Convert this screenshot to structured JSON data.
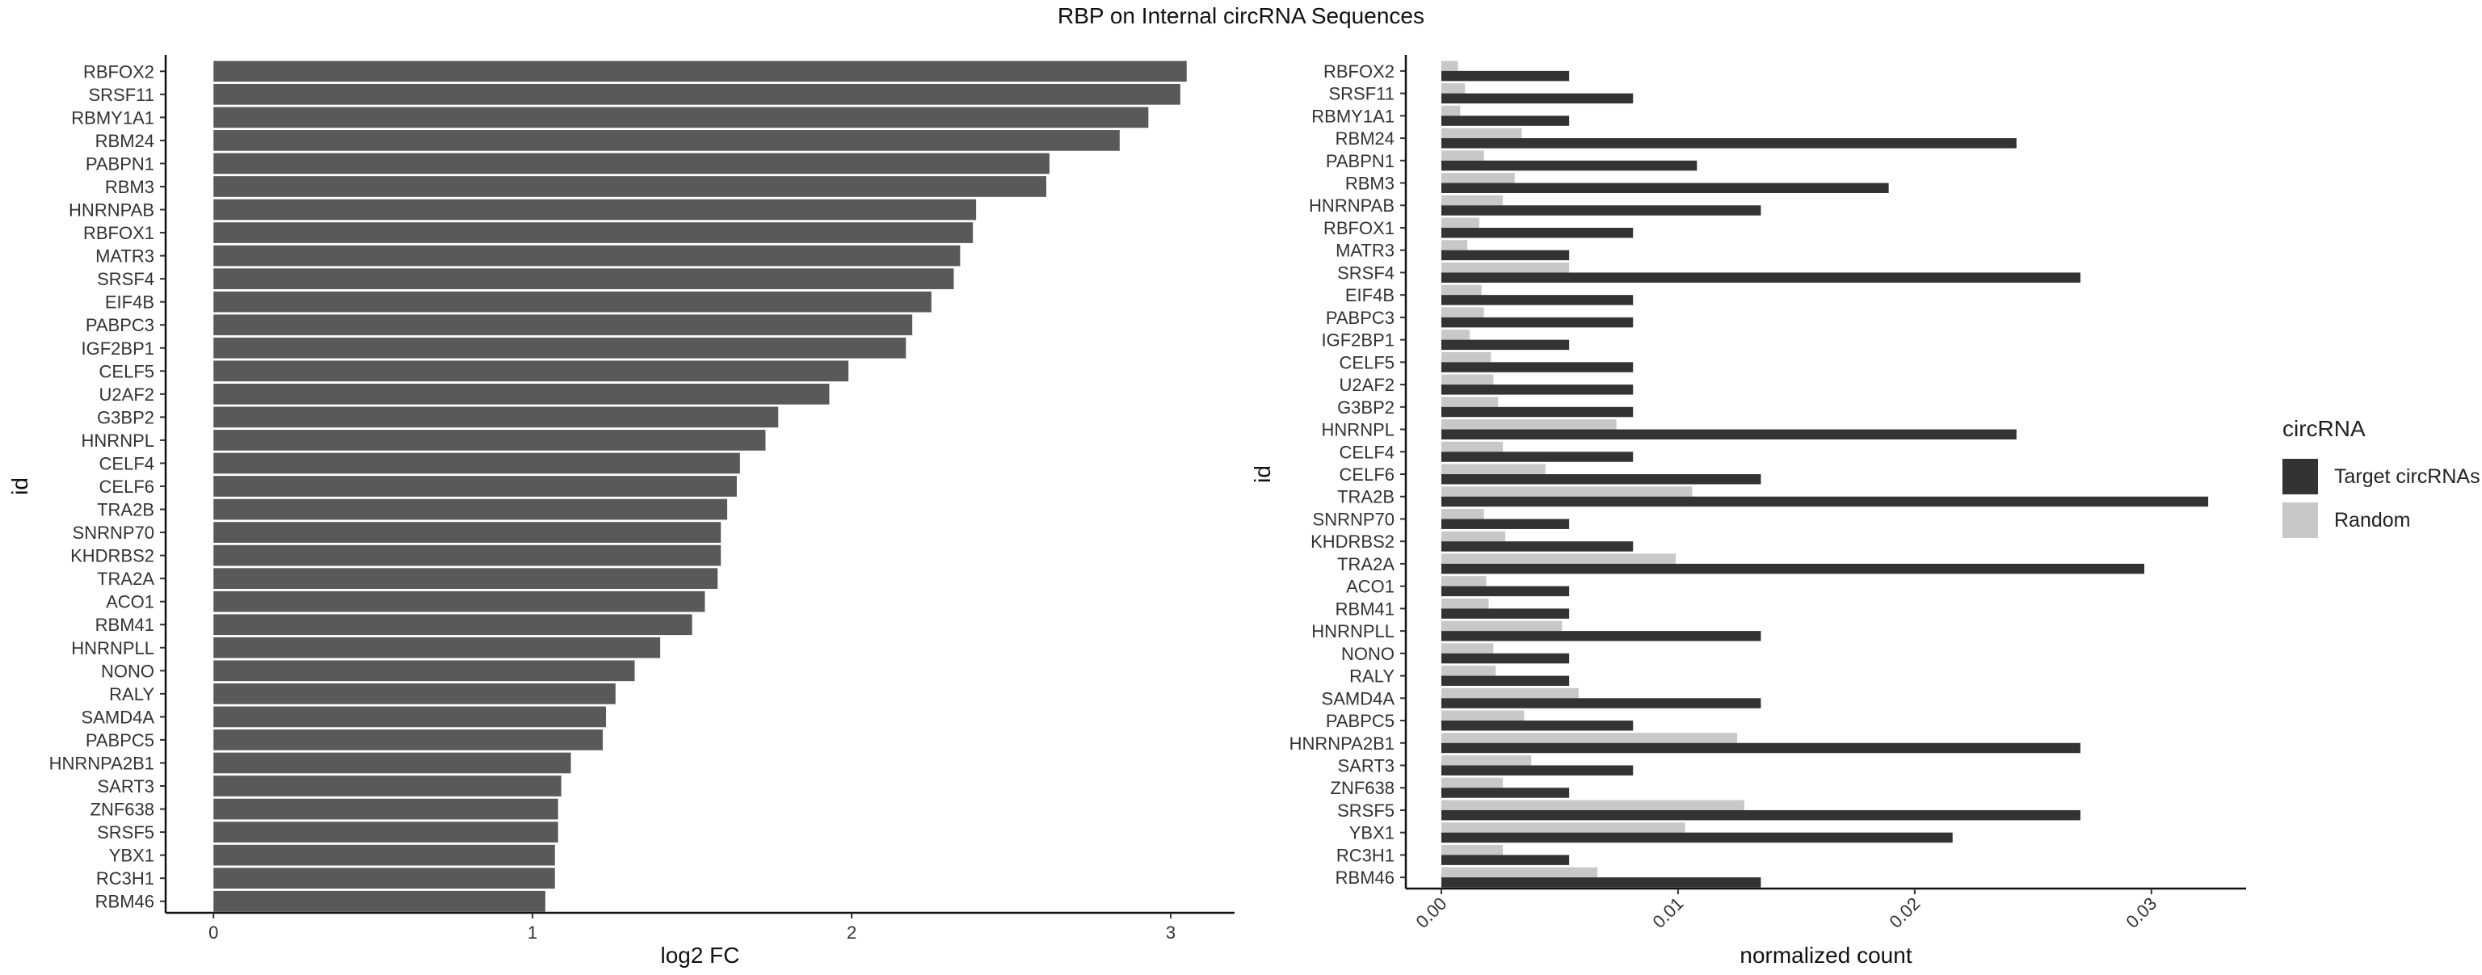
{
  "title": "RBP on Internal circRNA Sequences",
  "chart_data": [
    {
      "type": "bar",
      "orientation": "horizontal",
      "xlabel": "log2 FC",
      "ylabel": "id",
      "xlim": [
        -0.15,
        3.2
      ],
      "xticks": [
        0,
        1,
        2,
        3
      ],
      "xtick_labels": [
        "0",
        "1",
        "2",
        "3"
      ],
      "bar_color": "#595959",
      "categories": [
        "RBFOX2",
        "SRSF11",
        "RBMY1A1",
        "RBM24",
        "PABPN1",
        "RBM3",
        "HNRNPAB",
        "RBFOX1",
        "MATR3",
        "SRSF4",
        "EIF4B",
        "PABPC3",
        "IGF2BP1",
        "CELF5",
        "U2AF2",
        "G3BP2",
        "HNRNPL",
        "CELF4",
        "CELF6",
        "TRA2B",
        "SNRNP70",
        "KHDRBS2",
        "TRA2A",
        "ACO1",
        "RBM41",
        "HNRNPLL",
        "NONO",
        "RALY",
        "SAMD4A",
        "PABPC5",
        "HNRNPA2B1",
        "SART3",
        "ZNF638",
        "SRSF5",
        "YBX1",
        "RC3H1",
        "RBM46"
      ],
      "values": [
        3.05,
        3.03,
        2.93,
        2.84,
        2.62,
        2.61,
        2.39,
        2.38,
        2.34,
        2.32,
        2.25,
        2.19,
        2.17,
        1.99,
        1.93,
        1.77,
        1.73,
        1.65,
        1.64,
        1.61,
        1.59,
        1.59,
        1.58,
        1.54,
        1.5,
        1.4,
        1.32,
        1.26,
        1.23,
        1.22,
        1.12,
        1.09,
        1.08,
        1.08,
        1.07,
        1.07,
        1.04
      ]
    },
    {
      "type": "bar",
      "orientation": "horizontal",
      "grouped": true,
      "xlabel": "normalized count",
      "ylabel": "id",
      "xlim": [
        -0.0015,
        0.034
      ],
      "xticks": [
        0,
        0.01,
        0.02,
        0.03
      ],
      "xtick_labels": [
        "0.00",
        "0.01",
        "0.02",
        "0.03"
      ],
      "legend_title": "circRNA",
      "legend_position": "right",
      "categories": [
        "RBFOX2",
        "SRSF11",
        "RBMY1A1",
        "RBM24",
        "PABPN1",
        "RBM3",
        "HNRNPAB",
        "RBFOX1",
        "MATR3",
        "SRSF4",
        "EIF4B",
        "PABPC3",
        "IGF2BP1",
        "CELF5",
        "U2AF2",
        "G3BP2",
        "HNRNPL",
        "CELF4",
        "CELF6",
        "TRA2B",
        "SNRNP70",
        "KHDRBS2",
        "TRA2A",
        "ACO1",
        "RBM41",
        "HNRNPLL",
        "NONO",
        "RALY",
        "SAMD4A",
        "PABPC5",
        "HNRNPA2B1",
        "SART3",
        "ZNF638",
        "SRSF5",
        "YBX1",
        "RC3H1",
        "RBM46"
      ],
      "series": [
        {
          "name": "Target circRNAs",
          "color": "#333333",
          "values": [
            0.0054,
            0.0081,
            0.0054,
            0.0243,
            0.0108,
            0.0189,
            0.0135,
            0.0081,
            0.0054,
            0.027,
            0.0081,
            0.0081,
            0.0054,
            0.0081,
            0.0081,
            0.0081,
            0.0243,
            0.0081,
            0.0135,
            0.0324,
            0.0054,
            0.0081,
            0.0297,
            0.0054,
            0.0054,
            0.0135,
            0.0054,
            0.0054,
            0.0135,
            0.0081,
            0.027,
            0.0081,
            0.0054,
            0.027,
            0.0216,
            0.0054,
            0.0135
          ]
        },
        {
          "name": "Random",
          "color": "#c8c8c8",
          "values": [
            0.0007,
            0.001,
            0.0008,
            0.0034,
            0.0018,
            0.0031,
            0.0026,
            0.0016,
            0.0011,
            0.0054,
            0.0017,
            0.0018,
            0.0012,
            0.0021,
            0.0022,
            0.0024,
            0.0074,
            0.0026,
            0.0044,
            0.0106,
            0.0018,
            0.0027,
            0.0099,
            0.0019,
            0.002,
            0.0051,
            0.0022,
            0.0023,
            0.0058,
            0.0035,
            0.0125,
            0.0038,
            0.0026,
            0.0128,
            0.0103,
            0.0026,
            0.0066
          ]
        }
      ]
    }
  ]
}
